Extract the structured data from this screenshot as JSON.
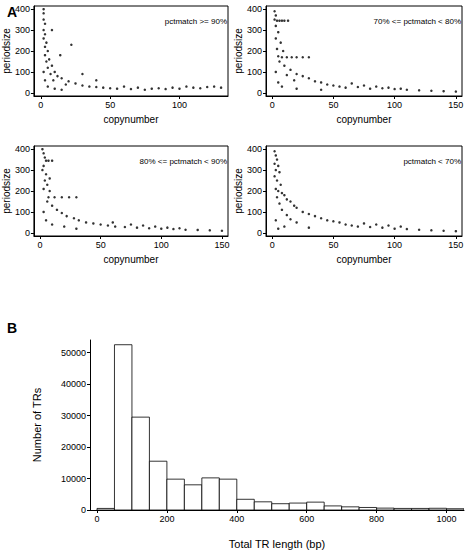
{
  "chart_data": [
    {
      "type": "scatter",
      "panel": "A",
      "annotations": [
        "pctmatch >= 90%"
      ],
      "x_label": "copynumber",
      "y_label": "periodsize",
      "color": "#000000",
      "marker": "circle",
      "xlim": [
        -5,
        135
      ],
      "xticks": [
        0,
        50,
        100
      ],
      "ylim": [
        -15,
        415
      ],
      "yticks": [
        0,
        100,
        200,
        300,
        400
      ],
      "grid": false,
      "points": [
        [
          2,
          400
        ],
        [
          2,
          380
        ],
        [
          2,
          350
        ],
        [
          3,
          330
        ],
        [
          2,
          300
        ],
        [
          3,
          280
        ],
        [
          2,
          260
        ],
        [
          4,
          240
        ],
        [
          3,
          220
        ],
        [
          5,
          200
        ],
        [
          3,
          180
        ],
        [
          6,
          160
        ],
        [
          4,
          150
        ],
        [
          8,
          130
        ],
        [
          5,
          120
        ],
        [
          10,
          100
        ],
        [
          7,
          90
        ],
        [
          12,
          80
        ],
        [
          15,
          70
        ],
        [
          9,
          60
        ],
        [
          20,
          55
        ],
        [
          25,
          45
        ],
        [
          18,
          40
        ],
        [
          30,
          35
        ],
        [
          35,
          30
        ],
        [
          40,
          28
        ],
        [
          45,
          25
        ],
        [
          50,
          22
        ],
        [
          55,
          20
        ],
        [
          60,
          30
        ],
        [
          65,
          18
        ],
        [
          70,
          25
        ],
        [
          75,
          15
        ],
        [
          80,
          20
        ],
        [
          85,
          22
        ],
        [
          90,
          18
        ],
        [
          95,
          25
        ],
        [
          100,
          20
        ],
        [
          105,
          30
        ],
        [
          110,
          25
        ],
        [
          115,
          22
        ],
        [
          120,
          28
        ],
        [
          125,
          30
        ],
        [
          130,
          25
        ],
        [
          22,
          230
        ],
        [
          8,
          300
        ],
        [
          14,
          180
        ],
        [
          30,
          90
        ],
        [
          40,
          60
        ],
        [
          3,
          60
        ],
        [
          5,
          30
        ],
        [
          10,
          20
        ],
        [
          15,
          15
        ],
        [
          2,
          100
        ]
      ]
    },
    {
      "type": "scatter",
      "annotations": [
        "70% <= pctmatch < 80%"
      ],
      "x_label": "copynumber",
      "y_label": "periodsize",
      "color": "#000000",
      "marker": "circle",
      "xlim": [
        -5,
        155
      ],
      "xticks": [
        0,
        50,
        100,
        150
      ],
      "ylim": [
        -15,
        415
      ],
      "yticks": [
        0,
        100,
        200,
        300,
        400
      ],
      "grid": false,
      "points": [
        [
          2,
          390
        ],
        [
          3,
          370
        ],
        [
          2,
          350
        ],
        [
          4,
          345
        ],
        [
          6,
          345
        ],
        [
          8,
          345
        ],
        [
          10,
          345
        ],
        [
          13,
          345
        ],
        [
          3,
          320
        ],
        [
          5,
          290
        ],
        [
          3,
          260
        ],
        [
          7,
          240
        ],
        [
          4,
          210
        ],
        [
          9,
          200
        ],
        [
          5,
          175
        ],
        [
          8,
          170
        ],
        [
          12,
          170
        ],
        [
          16,
          170
        ],
        [
          20,
          170
        ],
        [
          25,
          170
        ],
        [
          30,
          170
        ],
        [
          6,
          150
        ],
        [
          10,
          130
        ],
        [
          15,
          110
        ],
        [
          20,
          90
        ],
        [
          12,
          85
        ],
        [
          25,
          80
        ],
        [
          30,
          70
        ],
        [
          18,
          60
        ],
        [
          35,
          55
        ],
        [
          40,
          50
        ],
        [
          45,
          40
        ],
        [
          50,
          35
        ],
        [
          55,
          30
        ],
        [
          60,
          25
        ],
        [
          70,
          28
        ],
        [
          80,
          20
        ],
        [
          90,
          22
        ],
        [
          100,
          18
        ],
        [
          110,
          15
        ],
        [
          120,
          12
        ],
        [
          130,
          10
        ],
        [
          140,
          8
        ],
        [
          150,
          6
        ],
        [
          65,
          45
        ],
        [
          75,
          35
        ],
        [
          85,
          30
        ],
        [
          95,
          25
        ],
        [
          105,
          20
        ],
        [
          3,
          100
        ],
        [
          5,
          50
        ],
        [
          8,
          30
        ],
        [
          20,
          20
        ],
        [
          40,
          15
        ]
      ]
    },
    {
      "type": "scatter",
      "annotations": [
        "80% <= pctmatch < 90%"
      ],
      "x_label": "copynumber",
      "y_label": "periodsize",
      "color": "#000000",
      "marker": "circle",
      "xlim": [
        -5,
        155
      ],
      "xticks": [
        0,
        50,
        100,
        150
      ],
      "ylim": [
        -15,
        415
      ],
      "yticks": [
        0,
        100,
        200,
        300,
        400
      ],
      "grid": false,
      "points": [
        [
          2,
          400
        ],
        [
          3,
          380
        ],
        [
          4,
          360
        ],
        [
          5,
          345
        ],
        [
          7,
          345
        ],
        [
          10,
          345
        ],
        [
          3,
          320
        ],
        [
          2,
          300
        ],
        [
          5,
          280
        ],
        [
          4,
          250
        ],
        [
          6,
          230
        ],
        [
          3,
          210
        ],
        [
          8,
          200
        ],
        [
          7,
          170
        ],
        [
          12,
          170
        ],
        [
          18,
          170
        ],
        [
          24,
          170
        ],
        [
          30,
          170
        ],
        [
          6,
          150
        ],
        [
          10,
          130
        ],
        [
          14,
          110
        ],
        [
          18,
          95
        ],
        [
          22,
          80
        ],
        [
          28,
          70
        ],
        [
          32,
          60
        ],
        [
          38,
          50
        ],
        [
          44,
          45
        ],
        [
          50,
          40
        ],
        [
          56,
          35
        ],
        [
          62,
          30
        ],
        [
          70,
          28
        ],
        [
          80,
          25
        ],
        [
          90,
          22
        ],
        [
          100,
          20
        ],
        [
          110,
          18
        ],
        [
          120,
          15
        ],
        [
          130,
          14
        ],
        [
          140,
          12
        ],
        [
          150,
          10
        ],
        [
          60,
          50
        ],
        [
          75,
          40
        ],
        [
          85,
          35
        ],
        [
          95,
          30
        ],
        [
          105,
          25
        ],
        [
          115,
          22
        ],
        [
          3,
          100
        ],
        [
          5,
          60
        ],
        [
          10,
          40
        ],
        [
          20,
          30
        ],
        [
          30,
          20
        ],
        [
          8,
          260
        ]
      ]
    },
    {
      "type": "scatter",
      "annotations": [
        "pctmatch < 70%"
      ],
      "x_label": "copynumber",
      "y_label": "periodsize",
      "color": "#000000",
      "marker": "circle",
      "xlim": [
        -5,
        155
      ],
      "xticks": [
        0,
        50,
        100,
        150
      ],
      "ylim": [
        -15,
        415
      ],
      "yticks": [
        0,
        100,
        200,
        300,
        400
      ],
      "grid": false,
      "points": [
        [
          2,
          390
        ],
        [
          3,
          370
        ],
        [
          4,
          350
        ],
        [
          2,
          330
        ],
        [
          5,
          320
        ],
        [
          3,
          300
        ],
        [
          6,
          290
        ],
        [
          2,
          270
        ],
        [
          4,
          250
        ],
        [
          7,
          230
        ],
        [
          3,
          210
        ],
        [
          5,
          200
        ],
        [
          8,
          190
        ],
        [
          10,
          180
        ],
        [
          4,
          170
        ],
        [
          12,
          160
        ],
        [
          15,
          150
        ],
        [
          6,
          140
        ],
        [
          18,
          130
        ],
        [
          20,
          120
        ],
        [
          8,
          110
        ],
        [
          25,
          100
        ],
        [
          30,
          90
        ],
        [
          12,
          85
        ],
        [
          35,
          80
        ],
        [
          40,
          70
        ],
        [
          15,
          65
        ],
        [
          45,
          60
        ],
        [
          50,
          55
        ],
        [
          55,
          50
        ],
        [
          60,
          40
        ],
        [
          65,
          35
        ],
        [
          70,
          30
        ],
        [
          80,
          28
        ],
        [
          90,
          25
        ],
        [
          100,
          20
        ],
        [
          110,
          18
        ],
        [
          120,
          15
        ],
        [
          130,
          12
        ],
        [
          140,
          10
        ],
        [
          150,
          8
        ],
        [
          75,
          45
        ],
        [
          85,
          40
        ],
        [
          95,
          35
        ],
        [
          105,
          30
        ],
        [
          20,
          50
        ],
        [
          10,
          30
        ],
        [
          5,
          20
        ],
        [
          30,
          25
        ],
        [
          3,
          60
        ]
      ]
    },
    {
      "type": "histogram",
      "panel": "B",
      "x_label": "Total TR length (bp)",
      "y_label": "Number of TRs",
      "color": "#ffffff",
      "xlim": [
        -20,
        1050
      ],
      "xticks": [
        0,
        200,
        400,
        600,
        800,
        1000
      ],
      "ylim": [
        0,
        54000
      ],
      "yticks": [
        0,
        10000,
        20000,
        30000,
        40000,
        50000
      ],
      "grid": false,
      "bins": [
        0,
        50,
        100,
        150,
        200,
        250,
        300,
        350,
        400,
        450,
        500,
        550,
        600,
        650,
        700,
        750,
        800,
        850,
        900,
        950,
        1000,
        1050
      ],
      "counts": [
        500,
        52500,
        29500,
        15500,
        9800,
        8000,
        10200,
        9800,
        3400,
        2600,
        2000,
        2200,
        2500,
        1300,
        1000,
        800,
        600,
        500,
        500,
        550,
        400
      ]
    }
  ]
}
